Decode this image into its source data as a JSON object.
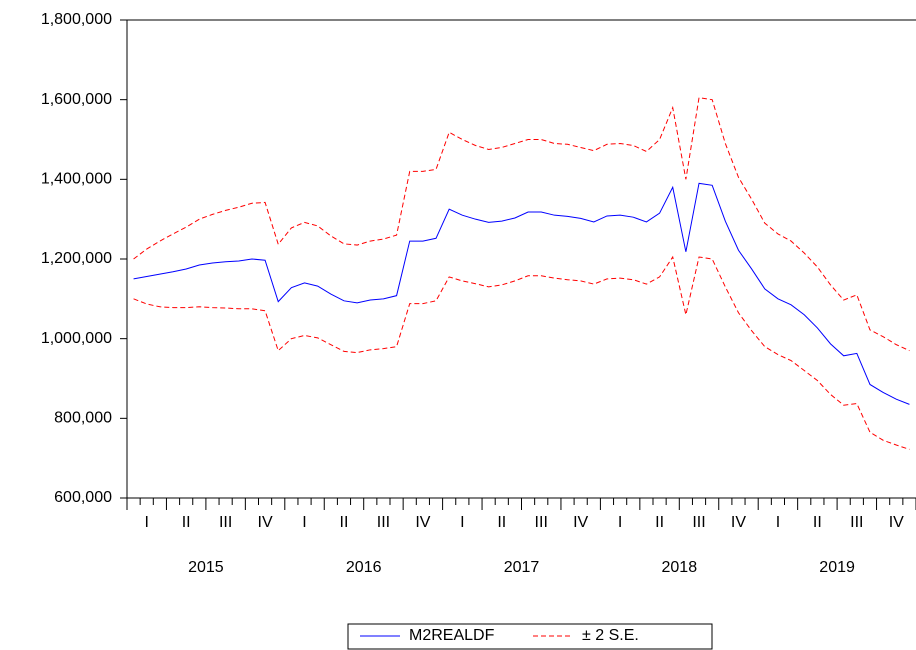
{
  "chart_data": {
    "type": "line",
    "x_axis": {
      "quarters": [
        "I",
        "II",
        "III",
        "IV",
        "I",
        "II",
        "III",
        "IV",
        "I",
        "II",
        "III",
        "IV",
        "I",
        "II",
        "III",
        "IV",
        "I",
        "II",
        "III",
        "IV"
      ],
      "years": [
        "2015",
        "2016",
        "2017",
        "2018",
        "2019"
      ]
    },
    "ylim": [
      600000,
      1800000
    ],
    "yticks": [
      {
        "value": 600000,
        "label": "600,000"
      },
      {
        "value": 800000,
        "label": "800,000"
      },
      {
        "value": 1000000,
        "label": "1,000,000"
      },
      {
        "value": 1200000,
        "label": "1,200,000"
      },
      {
        "value": 1400000,
        "label": "1,400,000"
      },
      {
        "value": 1600000,
        "label": "1,600,000"
      },
      {
        "value": 1800000,
        "label": "1,800,000"
      }
    ],
    "series": [
      {
        "name": "M2REALDF",
        "color": "#0000ff",
        "values": [
          1150000,
          1156000,
          1162000,
          1168000,
          1175000,
          1185000,
          1190000,
          1193000,
          1195000,
          1200000,
          1197000,
          1093000,
          1128000,
          1140000,
          1132000,
          1112000,
          1095000,
          1090000,
          1097000,
          1100000,
          1108000,
          1245000,
          1245000,
          1252000,
          1325000,
          1310000,
          1300000,
          1292000,
          1295000,
          1303000,
          1318000,
          1318000,
          1310000,
          1307000,
          1302000,
          1293000,
          1308000,
          1310000,
          1305000,
          1293000,
          1315000,
          1380000,
          1218000,
          1390000,
          1385000,
          1295000,
          1222000,
          1175000,
          1125000,
          1100000,
          1085000,
          1060000,
          1027000,
          987000,
          957000,
          963000,
          885000,
          865000,
          848000,
          835000
        ]
      },
      {
        "name": "± 2 S.E.",
        "color": "#ff0000",
        "dashed": true,
        "upper": [
          1200000,
          1225000,
          1245000,
          1263000,
          1280000,
          1300000,
          1312000,
          1322000,
          1330000,
          1340000,
          1342000,
          1237000,
          1278000,
          1292000,
          1283000,
          1258000,
          1238000,
          1235000,
          1245000,
          1250000,
          1260000,
          1420000,
          1420000,
          1425000,
          1518000,
          1500000,
          1485000,
          1475000,
          1480000,
          1490000,
          1500000,
          1500000,
          1490000,
          1488000,
          1480000,
          1472000,
          1488000,
          1490000,
          1485000,
          1470000,
          1500000,
          1580000,
          1400000,
          1605000,
          1600000,
          1490000,
          1405000,
          1350000,
          1290000,
          1263000,
          1245000,
          1215000,
          1180000,
          1135000,
          1097000,
          1110000,
          1022000,
          1005000,
          985000,
          970000
        ],
        "lower": [
          1100000,
          1087000,
          1080000,
          1078000,
          1078000,
          1080000,
          1078000,
          1077000,
          1075000,
          1075000,
          1070000,
          970000,
          1000000,
          1008000,
          1002000,
          985000,
          968000,
          965000,
          972000,
          975000,
          980000,
          1088000,
          1088000,
          1095000,
          1155000,
          1145000,
          1138000,
          1130000,
          1135000,
          1145000,
          1158000,
          1158000,
          1152000,
          1148000,
          1145000,
          1137000,
          1150000,
          1152000,
          1148000,
          1137000,
          1155000,
          1205000,
          1060000,
          1205000,
          1200000,
          1130000,
          1065000,
          1020000,
          980000,
          960000,
          945000,
          920000,
          895000,
          860000,
          833000,
          837000,
          765000,
          745000,
          733000,
          722000
        ]
      }
    ]
  }
}
